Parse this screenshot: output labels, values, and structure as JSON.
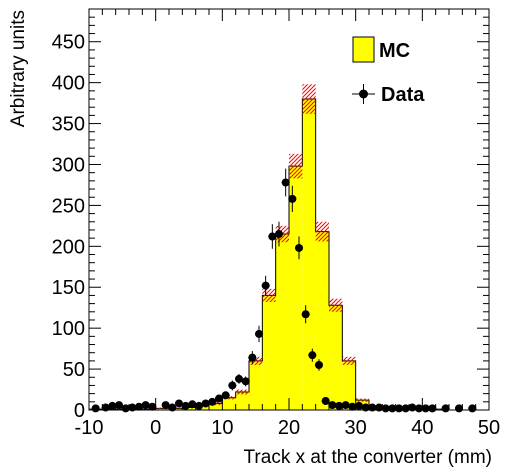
{
  "chart_data": {
    "type": "bar",
    "xlabel": "Track x at the converter (mm)",
    "ylabel": "Arbitrary units",
    "xlim": [
      -10,
      50
    ],
    "ylim": [
      0,
      490
    ],
    "x_ticks": [
      -10,
      0,
      10,
      20,
      30,
      40,
      50
    ],
    "y_ticks": [
      0,
      50,
      100,
      150,
      200,
      250,
      300,
      350,
      400,
      450
    ],
    "grid": false,
    "legend_position": "top-right",
    "series": [
      {
        "name": "MC",
        "style": "histogram",
        "fill_color": "#ffff00",
        "line_color": "#000000",
        "uncertainty_hatch_color": "#ff0000",
        "bin_edges": [
          -10,
          -8,
          -6,
          -4,
          -2,
          0,
          2,
          4,
          6,
          8,
          10,
          12,
          14,
          16,
          18,
          20,
          22,
          24,
          26,
          28,
          30,
          32,
          34,
          36,
          38,
          40,
          42,
          44,
          46,
          48,
          50
        ],
        "values": [
          1,
          1,
          1,
          1,
          1,
          2,
          2,
          3,
          5,
          8,
          15,
          22,
          60,
          140,
          215,
          298,
          380,
          218,
          128,
          60,
          12,
          5,
          3,
          2,
          1,
          1,
          1,
          0,
          0,
          0
        ],
        "uncertainty": [
          0.5,
          0.5,
          0.5,
          0.5,
          0.5,
          1,
          1,
          1,
          1,
          2,
          2,
          3,
          5,
          8,
          10,
          15,
          18,
          12,
          8,
          5,
          2,
          1,
          1,
          1,
          0.5,
          0.5,
          0.5,
          0,
          0,
          0
        ]
      },
      {
        "name": "Data",
        "style": "points",
        "marker_color": "#000000",
        "x": [
          -9,
          -7.5,
          -6.5,
          -5.5,
          -4.5,
          -3.5,
          -2.5,
          -1.5,
          -0.5,
          1.5,
          2.5,
          3.5,
          4.5,
          5.5,
          6.5,
          7.5,
          8.5,
          9.5,
          10.5,
          11.5,
          12.5,
          13.5,
          14.5,
          15.5,
          16.5,
          17.5,
          18.5,
          19.5,
          20.5,
          21.5,
          22.5,
          23.5,
          24.5,
          25.5,
          26.5,
          27.5,
          28.5,
          29.5,
          30.5,
          31.5,
          32.5,
          33.5,
          34.5,
          35.5,
          36.5,
          37.5,
          38.5,
          39.5,
          40.5,
          41.5,
          43.5,
          45.5,
          47.5
        ],
        "y": [
          2,
          3,
          5,
          6,
          2,
          3,
          4,
          6,
          4,
          6,
          3,
          8,
          5,
          7,
          5,
          8,
          10,
          14,
          18,
          30,
          38,
          35,
          64,
          93,
          152,
          212,
          215,
          278,
          258,
          198,
          117,
          67,
          55,
          11,
          6,
          5,
          6,
          4,
          5,
          3,
          3,
          3,
          2,
          2,
          2,
          2,
          3,
          2,
          2,
          2,
          2,
          2,
          2
        ],
        "yerr": [
          1.5,
          1.5,
          2,
          2,
          1.5,
          1.5,
          2,
          2,
          2,
          2,
          1.5,
          3,
          2,
          3,
          2,
          3,
          3,
          4,
          4,
          6,
          6,
          6,
          8,
          10,
          12,
          15,
          15,
          17,
          16,
          14,
          11,
          8,
          7,
          3,
          2,
          2,
          2,
          2,
          2,
          1.5,
          1.5,
          1.5,
          1.5,
          1.5,
          1.5,
          1.5,
          1.5,
          1.5,
          1.5,
          1.5,
          1.5,
          1.5,
          1.5
        ]
      }
    ]
  }
}
